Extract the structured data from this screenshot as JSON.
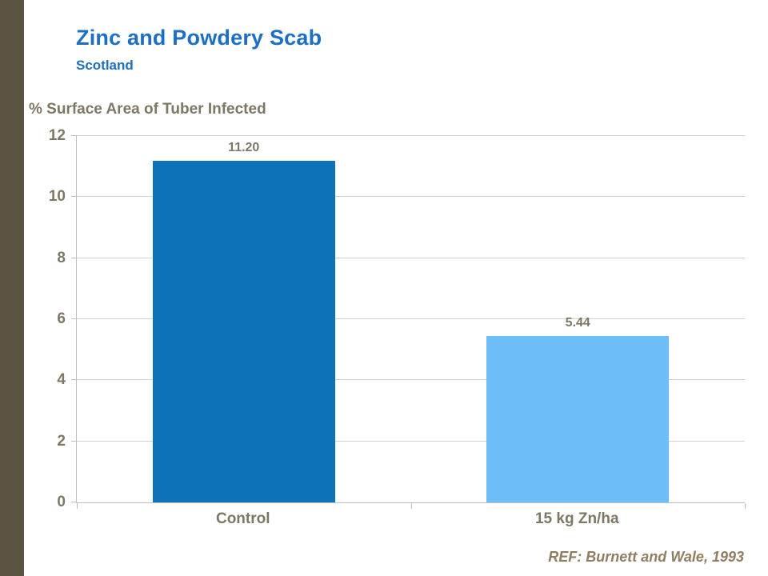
{
  "header": {
    "title": "Zinc and Powdery Scab",
    "subtitle": "Scotland"
  },
  "footer": {
    "reference": "REF: Burnett and Wale, 1993"
  },
  "colors": {
    "title_blue": "#1C6FC4",
    "bar_control": "#0E72B9",
    "bar_zinc": "#6DBEF8",
    "label_brown": "#7E7765",
    "stripe_brown": "#5B5443",
    "gridline_gray": "#D2D2D2",
    "axis_gray": "#BFBFBF",
    "reference_brown": "#8F7D60"
  },
  "chart_data": {
    "type": "bar",
    "categories": [
      "Control",
      "15 kg Zn/ha"
    ],
    "values": [
      11.2,
      5.44
    ],
    "value_labels": [
      "11.20",
      "5.44"
    ],
    "bar_colors": [
      "#0E72B9",
      "#6DBEF8"
    ],
    "title": "Zinc and Powdery Scab",
    "subtitle": "Scotland",
    "xlabel": "",
    "ylabel": "% Surface Area of Tuber Infected",
    "ylim": [
      0,
      12
    ],
    "yticks": [
      0,
      2,
      4,
      6,
      8,
      10,
      12
    ],
    "grid": "horizontal",
    "legend": "none"
  }
}
